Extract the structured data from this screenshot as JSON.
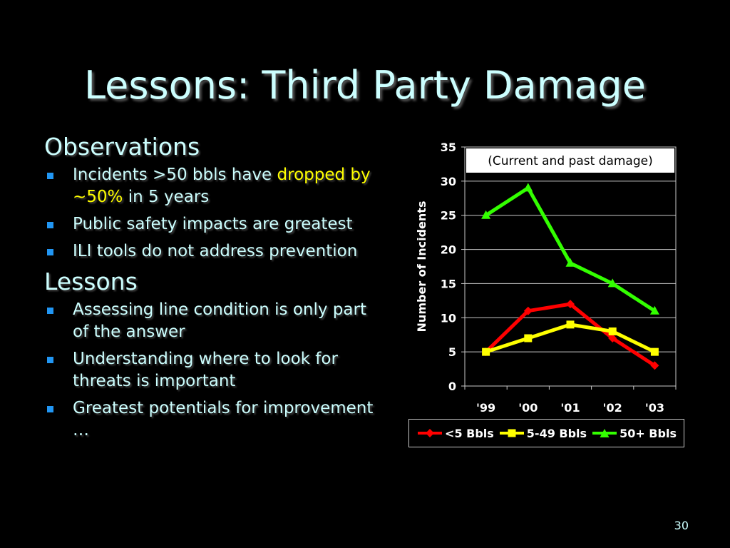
{
  "slide": {
    "title": "Lessons: Third Party Damage",
    "page_number": "30"
  },
  "observations": {
    "heading": "Observations",
    "bullet1": {
      "text_before": "Incidents >50 bbls have ",
      "highlight": "dropped by ~50%",
      "text_after": " in 5 years"
    },
    "bullet2": "Public safety impacts are greatest",
    "bullet3": "ILI tools do not address prevention"
  },
  "lessons": {
    "heading": "Lessons",
    "bullet1": "Assessing line condition is only part of the answer",
    "bullet2": "Understanding where to look for threats is important",
    "bullet3": "Greatest potentials for improvement …"
  },
  "colors": {
    "title": "#ccffff",
    "bullet_marker": "#2196f3",
    "highlight": "#ffff00"
  },
  "chart_data": {
    "type": "line",
    "annotation": "(Current and past damage)",
    "xlabel": "",
    "ylabel": "Number of Incidents",
    "categories": [
      "'99",
      "'00",
      "'01",
      "'02",
      "'03"
    ],
    "ylim": [
      0,
      35
    ],
    "yticks": [
      "0",
      "5",
      "10",
      "15",
      "20",
      "25",
      "30",
      "35"
    ],
    "grid": true,
    "legend_position": "bottom",
    "series": [
      {
        "name": "<5 Bbls",
        "values": [
          5,
          11,
          12,
          7,
          3
        ],
        "color": "#ff0000",
        "marker": "diamond"
      },
      {
        "name": "5-49 Bbls",
        "values": [
          5,
          7,
          9,
          8,
          5
        ],
        "color": "#ffff00",
        "marker": "square"
      },
      {
        "name": "50+ Bbls",
        "values": [
          25,
          29,
          18,
          15,
          11
        ],
        "color": "#33ff00",
        "marker": "triangle"
      }
    ]
  }
}
